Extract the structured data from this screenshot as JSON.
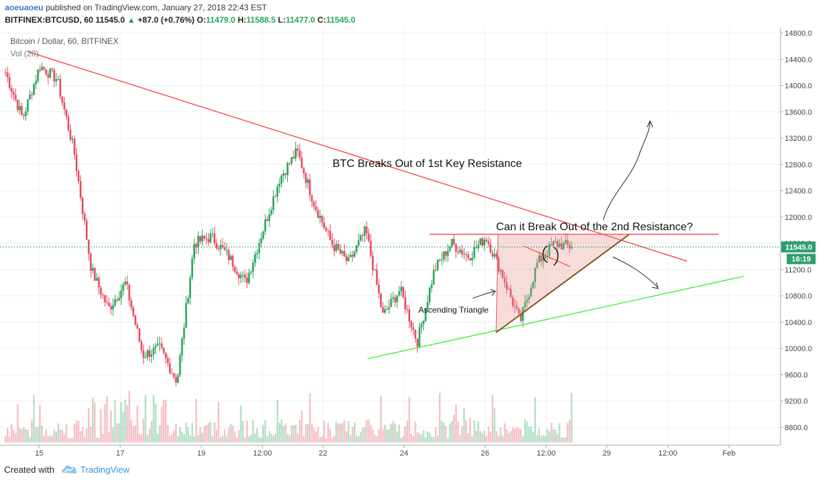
{
  "header": {
    "author": "aoeuaoeu",
    "published": "published on TradingView.com, January 27, 2018 22:43 EST",
    "symbol": "BITFINEX:BTCUSD, 60",
    "last": "11545.0",
    "change": "+87.0 (+0.76%)",
    "o_label": "O:",
    "o_val": "11479.0",
    "h_label": "H:",
    "h_val": "11588.5",
    "l_label": "L:",
    "l_val": "11477.0",
    "c_label": "C:",
    "c_val": "11545.0"
  },
  "legend": {
    "title": "Bitcoin / Dollar, 60, BITFINEX",
    "vol": "Vol (20)"
  },
  "price_axis": {
    "ticks": [
      "14800.0",
      "14400.0",
      "14000.0",
      "13600.0",
      "13200.0",
      "12800.0",
      "12400.0",
      "12000.0",
      "11600.0",
      "11200.0",
      "10800.0",
      "10400.0",
      "10000.0",
      "9600.0",
      "9200.0",
      "8800.0"
    ],
    "tick_values": [
      14800,
      14400,
      14000,
      13600,
      13200,
      12800,
      12400,
      12000,
      11600,
      11200,
      10800,
      10400,
      10000,
      9600,
      9200,
      8800
    ],
    "last_price_label": "11545.0",
    "countdown_label": "16:19"
  },
  "time_axis": {
    "labels": [
      "15",
      "17",
      "19",
      "12:00",
      "22",
      "24",
      "26",
      "12:00",
      "29",
      "12:00",
      "Feb"
    ]
  },
  "annotations": {
    "title1": "BTC Breaks Out of 1st Key Resistance",
    "title2": "Can it Break Out of the 2nd Resistance?",
    "triangle_label": "Ascending Triangle"
  },
  "footer": {
    "created_with": "Created with",
    "brand": "TradingView"
  },
  "chart_data": {
    "type": "candlestick",
    "symbol": "BITFINEX:BTCUSD",
    "interval": "60",
    "ylim": [
      8600,
      14900
    ],
    "price_keypoints": [
      [
        "15",
        14200
      ],
      [
        "15",
        13500
      ],
      [
        "",
        14300
      ],
      [
        "",
        14100
      ],
      [
        "16",
        13000
      ],
      [
        "",
        11200
      ],
      [
        "",
        10600
      ],
      [
        "17",
        11000
      ],
      [
        "",
        9900
      ],
      [
        "",
        10000
      ],
      [
        "",
        9500
      ],
      [
        "",
        11600
      ],
      [
        "19",
        11700
      ],
      [
        "",
        11400
      ],
      [
        "",
        11000
      ],
      [
        "12:00",
        11800
      ],
      [
        "",
        12600
      ],
      [
        "",
        13000
      ],
      [
        "",
        12200
      ],
      [
        "",
        11600
      ],
      [
        "22",
        11300
      ],
      [
        "",
        11800
      ],
      [
        "",
        10500
      ],
      [
        "",
        10900
      ],
      [
        "",
        10100
      ],
      [
        "24",
        11200
      ],
      [
        "",
        11600
      ],
      [
        "",
        11400
      ],
      [
        "",
        11700
      ],
      [
        "26",
        11100
      ],
      [
        "",
        10400
      ],
      [
        "",
        11300
      ],
      [
        "12:00",
        11600
      ],
      [
        "",
        11545
      ]
    ],
    "last_price": 11545.0,
    "change": 87.0,
    "change_pct": 0.76,
    "open": 11479.0,
    "high": 11588.5,
    "low": 11477.0,
    "close": 11545.0,
    "colors": {
      "up": "#26a65b",
      "down": "#e84a5f",
      "trendline": "#ff2c2c",
      "support": "#33ee33"
    }
  }
}
